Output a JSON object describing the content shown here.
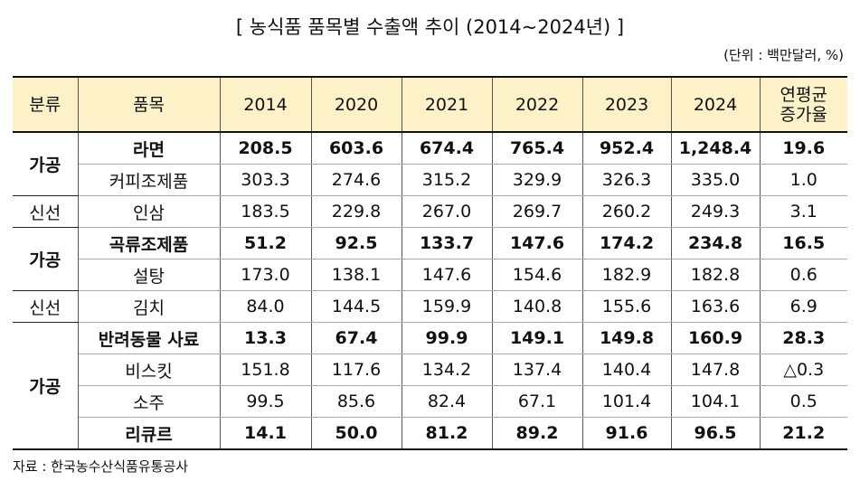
{
  "header": {
    "title": "[ 농식품 품목별 수출액 추이 (2014~2024년) ]",
    "unit": "(단위 : 백만달러, %)"
  },
  "table": {
    "headers": [
      "분류",
      "품목",
      "2014",
      "2020",
      "2021",
      "2022",
      "2023",
      "2024",
      "연평균\n증가율"
    ],
    "groups": [
      {
        "category": "가공",
        "rows": [
          {
            "item": "라면",
            "bold": true,
            "values": [
              "208.5",
              "603.6",
              "674.4",
              "765.4",
              "952.4",
              "1,248.4",
              "19.6"
            ]
          },
          {
            "item": "커피조제품",
            "bold": false,
            "values": [
              "303.3",
              "274.6",
              "315.2",
              "329.9",
              "326.3",
              "335.0",
              "1.0"
            ]
          }
        ]
      },
      {
        "category": "신선",
        "rows": [
          {
            "item": "인삼",
            "bold": false,
            "values": [
              "183.5",
              "229.8",
              "267.0",
              "269.7",
              "260.2",
              "249.3",
              "3.1"
            ]
          }
        ]
      },
      {
        "category": "가공",
        "rows": [
          {
            "item": "곡류조제품",
            "bold": true,
            "values": [
              "51.2",
              "92.5",
              "133.7",
              "147.6",
              "174.2",
              "234.8",
              "16.5"
            ]
          },
          {
            "item": "설탕",
            "bold": false,
            "values": [
              "173.0",
              "138.1",
              "147.6",
              "154.6",
              "182.9",
              "182.8",
              "0.6"
            ]
          }
        ]
      },
      {
        "category": "신선",
        "rows": [
          {
            "item": "김치",
            "bold": false,
            "values": [
              "84.0",
              "144.5",
              "159.9",
              "140.8",
              "155.6",
              "163.6",
              "6.9"
            ]
          }
        ]
      },
      {
        "category": "가공",
        "rows": [
          {
            "item": "반려동물 사료",
            "bold": true,
            "values": [
              "13.3",
              "67.4",
              "99.9",
              "149.1",
              "149.8",
              "160.9",
              "28.3"
            ]
          },
          {
            "item": "비스킷",
            "bold": false,
            "values": [
              "151.8",
              "117.6",
              "134.2",
              "137.4",
              "140.4",
              "147.8",
              "△0.3"
            ]
          },
          {
            "item": "소주",
            "bold": false,
            "values": [
              "99.5",
              "85.6",
              "82.4",
              "67.1",
              "101.4",
              "104.1",
              "0.5"
            ]
          },
          {
            "item": "리큐르",
            "bold": true,
            "values": [
              "14.1",
              "50.0",
              "81.2",
              "89.2",
              "91.6",
              "96.5",
              "21.2"
            ]
          }
        ]
      }
    ]
  },
  "footer": {
    "source": "자료 : 한국농수산식품유통공사"
  }
}
